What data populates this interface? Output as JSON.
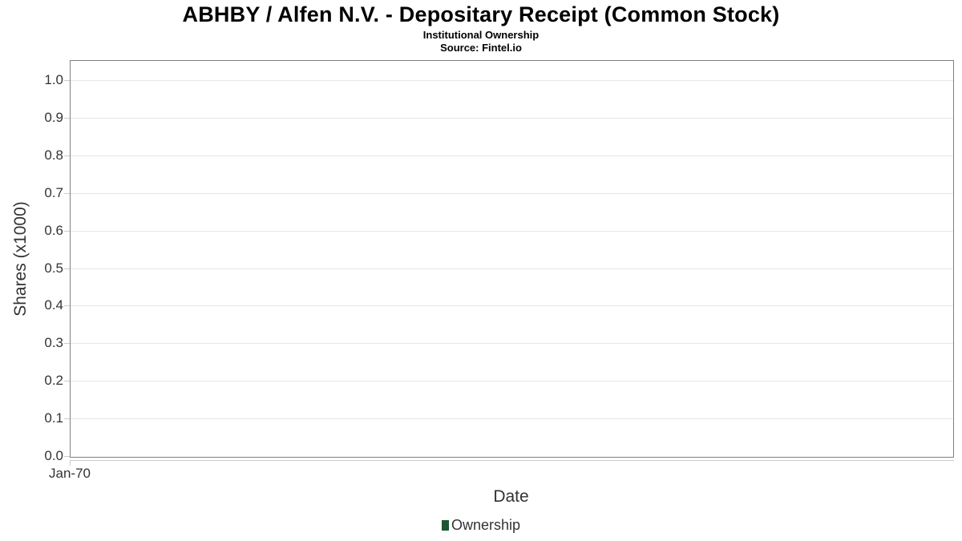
{
  "chart_data": {
    "type": "line",
    "title": "ABHBY / Alfen N.V. - Depositary Receipt (Common Stock)",
    "subtitle": "Institutional Ownership",
    "source": "Source: Fintel.io",
    "xlabel": "Date",
    "ylabel": "Shares (x1000)",
    "ylim": [
      0.0,
      1.0
    ],
    "y_ticks": [
      0.0,
      0.1,
      0.2,
      0.3,
      0.4,
      0.5,
      0.6,
      0.7,
      0.8,
      0.9,
      1.0
    ],
    "y_tick_labels": [
      "0.0",
      "0.1",
      "0.2",
      "0.3",
      "0.4",
      "0.5",
      "0.6",
      "0.7",
      "0.8",
      "0.9",
      "1.0"
    ],
    "x_ticks": [
      "Jan-70"
    ],
    "grid": true,
    "legend_position": "bottom-center",
    "series": [
      {
        "name": "Ownership",
        "color": "#1d5632",
        "x": [],
        "values": []
      }
    ]
  },
  "colors": {
    "plot_border": "#808080",
    "gridline": "#e6e6e6",
    "tick": "#cccccc",
    "text": "#333333",
    "title_text": "#000000",
    "background": "#ffffff",
    "ownership_green": "#1d5632"
  }
}
